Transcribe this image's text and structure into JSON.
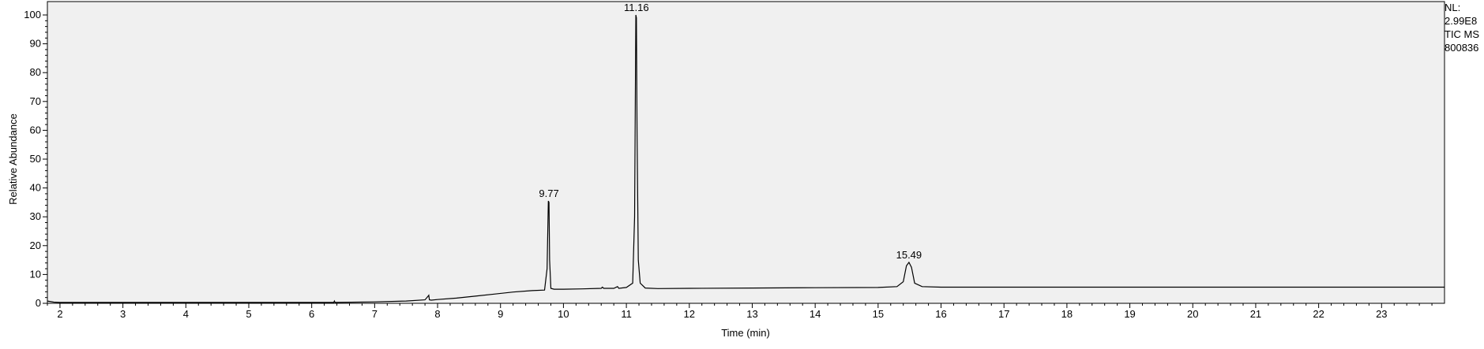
{
  "chart_data": {
    "type": "line",
    "title": "",
    "xlabel": "Time (min)",
    "ylabel": "Relative Abundance",
    "xlim": [
      1.8,
      24.0
    ],
    "ylim": [
      0,
      100
    ],
    "x_ticks": [
      2,
      3,
      4,
      5,
      6,
      7,
      8,
      9,
      10,
      11,
      12,
      13,
      14,
      15,
      16,
      17,
      18,
      19,
      20,
      21,
      22,
      23
    ],
    "y_ticks": [
      0,
      10,
      20,
      30,
      40,
      50,
      60,
      70,
      80,
      90,
      100
    ],
    "grid": false,
    "legend": "none",
    "plot_background": "#f0f0f0",
    "line_color": "#000000",
    "series": [
      {
        "x": [
          1.8,
          1.9,
          2.0,
          2.5,
          3.0,
          4.0,
          5.0,
          6.0,
          6.35,
          6.36,
          6.37,
          7.0,
          7.5,
          7.8,
          7.85,
          7.86,
          7.87,
          7.9,
          8.0,
          8.3,
          8.6,
          8.9,
          9.2,
          9.5,
          9.7,
          9.74,
          9.76,
          9.77,
          9.78,
          9.8,
          9.85,
          10.0,
          10.3,
          10.6,
          10.62,
          10.64,
          10.8,
          10.86,
          10.88,
          11.0,
          11.1,
          11.13,
          11.15,
          11.16,
          11.17,
          11.19,
          11.22,
          11.3,
          11.5,
          12.0,
          13.0,
          14.0,
          15.0,
          15.3,
          15.4,
          15.45,
          15.49,
          15.53,
          15.58,
          15.7,
          16.0,
          17.0,
          18.0,
          19.0,
          20.0,
          21.0,
          22.0,
          23.0,
          24.0
        ],
        "y": [
          0.8,
          0.4,
          0.3,
          0.3,
          0.3,
          0.3,
          0.3,
          0.3,
          0.3,
          0.8,
          0.3,
          0.5,
          0.8,
          1.2,
          2.5,
          2.8,
          1.2,
          1.1,
          1.3,
          1.8,
          2.5,
          3.2,
          3.9,
          4.4,
          4.6,
          12.0,
          35.5,
          35.0,
          15.0,
          5.2,
          4.9,
          4.9,
          5.0,
          5.2,
          5.6,
          5.2,
          5.2,
          5.8,
          5.2,
          5.5,
          7.0,
          30.0,
          100.0,
          99.0,
          60.0,
          15.0,
          7.0,
          5.3,
          5.1,
          5.2,
          5.3,
          5.4,
          5.5,
          5.8,
          7.5,
          13.0,
          14.2,
          12.5,
          7.0,
          5.8,
          5.6,
          5.6,
          5.6,
          5.6,
          5.6,
          5.6,
          5.6,
          5.6,
          5.6
        ]
      }
    ],
    "peak_labels": [
      {
        "x": 9.77,
        "y": 35.5,
        "text": "9.77"
      },
      {
        "x": 11.16,
        "y": 100.0,
        "text": "11.16"
      },
      {
        "x": 15.49,
        "y": 14.2,
        "text": "15.49"
      }
    ]
  },
  "info": {
    "line1": "NL:",
    "line2": "2.99E8",
    "line3": "TIC  MS",
    "line4": "800836"
  }
}
